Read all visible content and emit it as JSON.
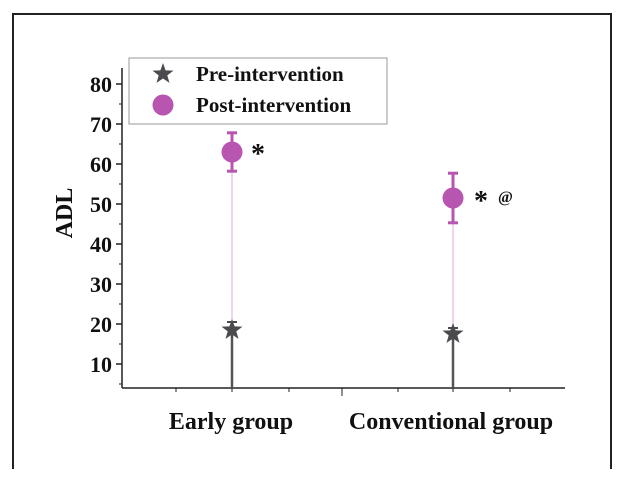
{
  "chart_data": {
    "type": "scatter",
    "ylabel": "ADL",
    "ylim": [
      4,
      82
    ],
    "yticks": [
      10,
      20,
      30,
      40,
      50,
      60,
      70,
      80
    ],
    "categories": [
      "Early group",
      "Conventional group"
    ],
    "series": [
      {
        "name": "Pre-intervention",
        "marker": "star",
        "color": "#4a4a4f",
        "values": [
          18.5,
          17.5
        ],
        "err": [
          2.0,
          1.5
        ]
      },
      {
        "name": "Post-intervention",
        "marker": "circle",
        "color": "#b755b0",
        "values": [
          63,
          51.5
        ],
        "err": [
          4.8,
          6.2
        ]
      }
    ],
    "annotations": [
      "*",
      "*",
      "@"
    ],
    "legend_position": "top-left"
  }
}
